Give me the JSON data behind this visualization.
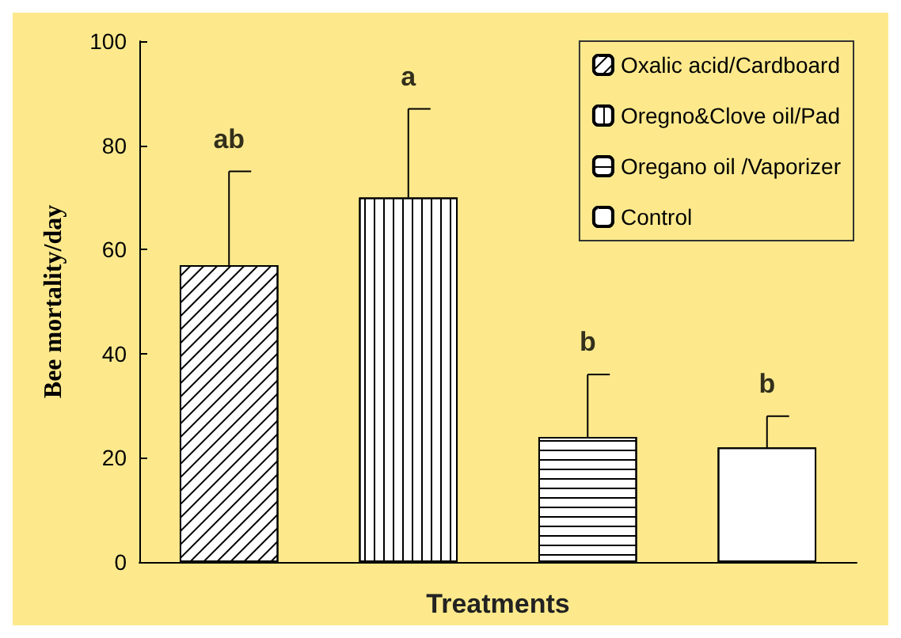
{
  "chart_data": {
    "type": "bar",
    "xlabel": "Treatments",
    "ylabel": "Bee mortality/day",
    "categories": [
      null,
      null,
      null,
      null
    ],
    "series": [
      {
        "name": "Oxalic acid/Cardboard",
        "color": "#ffffff",
        "values": [
          57,
          null,
          null,
          null
        ],
        "errors": [
          18,
          null,
          null,
          null
        ]
      },
      {
        "name": "Oregno&Clove oil/Pad",
        "color": "#ffffff",
        "values": [
          null,
          70,
          null,
          null
        ],
        "errors": [
          null,
          17,
          null,
          null
        ]
      },
      {
        "name": "Oregano oil /Vaporizer",
        "color": "#ffffff",
        "values": [
          null,
          null,
          24,
          null
        ],
        "errors": [
          null,
          null,
          12,
          null
        ]
      },
      {
        "name": "Control",
        "color": "#ffffff",
        "values": [
          null,
          null,
          null,
          22
        ],
        "errors": [
          null,
          null,
          null,
          6
        ]
      }
    ],
    "annotations": [
      "ab",
      "a",
      "b",
      "b"
    ],
    "ylim": [
      0,
      100
    ],
    "yticks": [
      0,
      20,
      40,
      60,
      80,
      100
    ],
    "grid": false,
    "legend": "top right"
  }
}
